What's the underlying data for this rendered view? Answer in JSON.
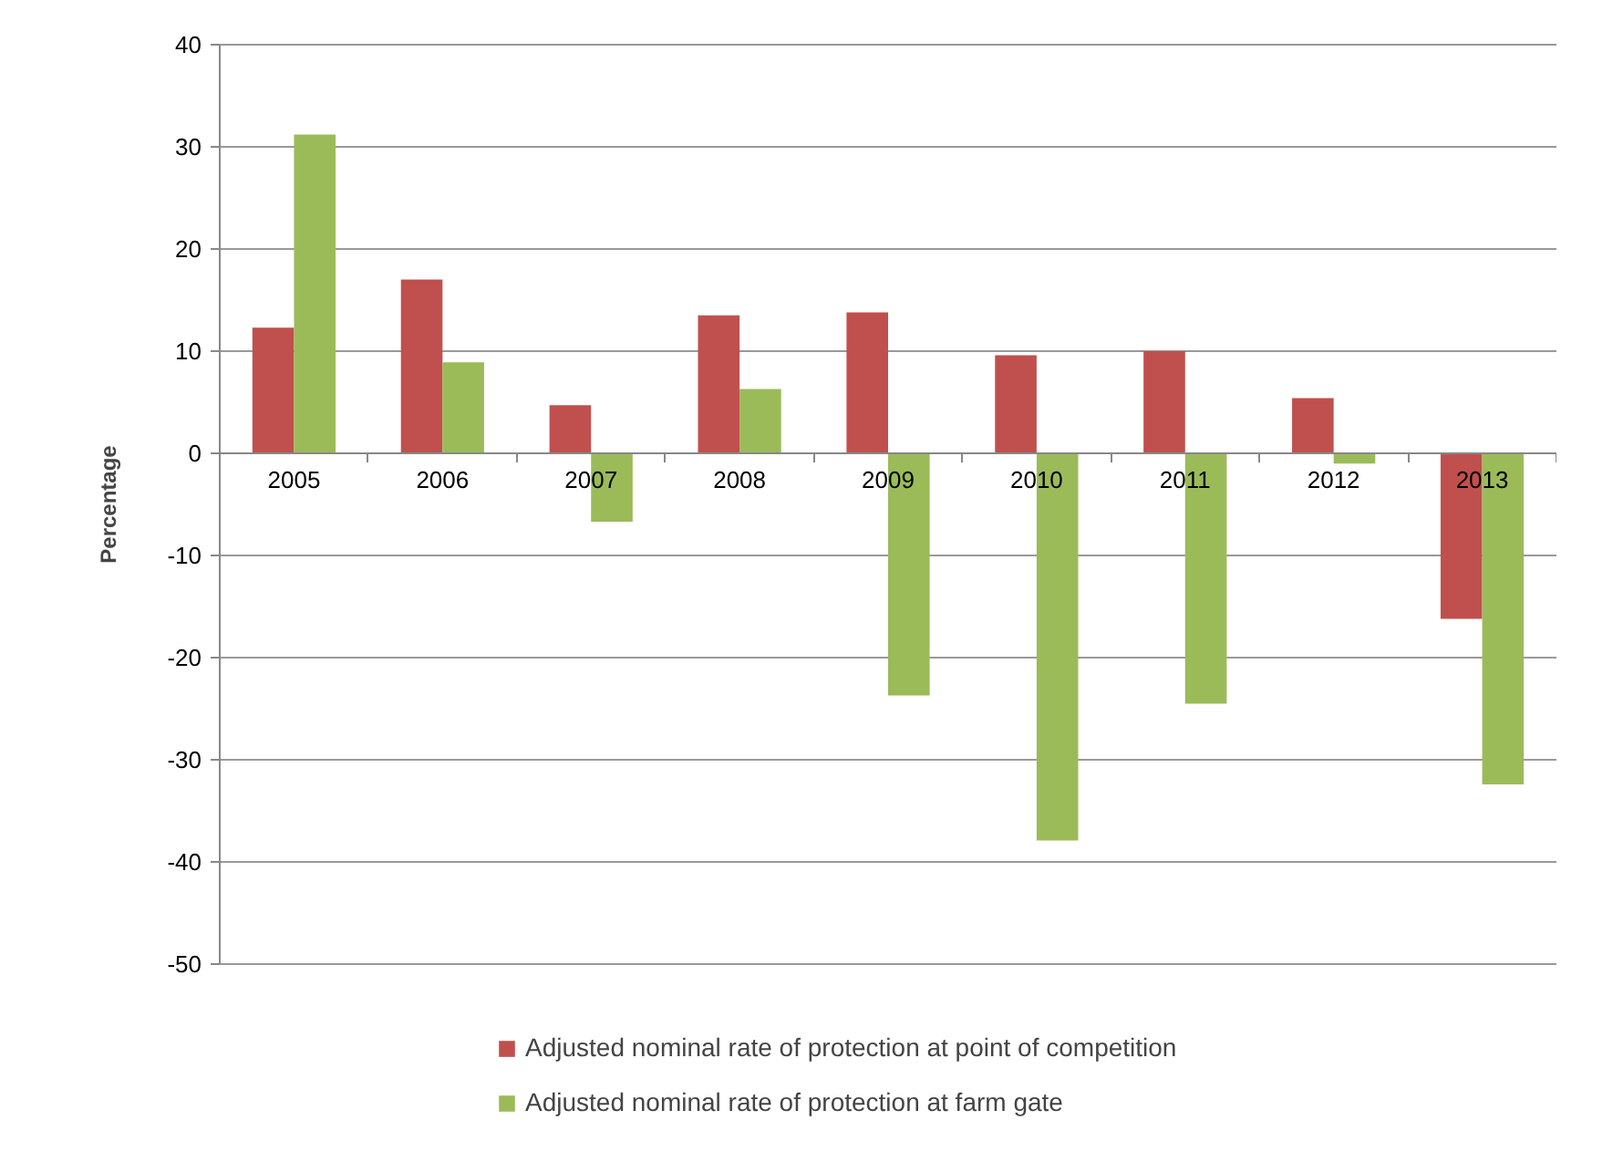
{
  "chart_data": {
    "type": "bar",
    "ylabel": "Percentage",
    "categories": [
      "2005",
      "2006",
      "2007",
      "2008",
      "2009",
      "2010",
      "2011",
      "2012",
      "2013"
    ],
    "series": [
      {
        "name": "Adjusted nominal rate of protection at point of competition",
        "color": "#c0504d",
        "values": [
          12.3,
          17.0,
          4.7,
          13.5,
          13.8,
          9.6,
          10.0,
          5.4,
          -16.2
        ]
      },
      {
        "name": "Adjusted nominal rate of protection at farm gate",
        "color": "#9bbb59",
        "values": [
          31.2,
          8.9,
          -6.7,
          6.3,
          -23.7,
          -37.9,
          -24.5,
          -1.0,
          -32.4
        ]
      }
    ],
    "ylim": [
      -50,
      40
    ],
    "yticks": [
      -50,
      -40,
      -30,
      -20,
      -10,
      0,
      10,
      20,
      30,
      40
    ],
    "grid": "y",
    "legend": "bottom"
  }
}
